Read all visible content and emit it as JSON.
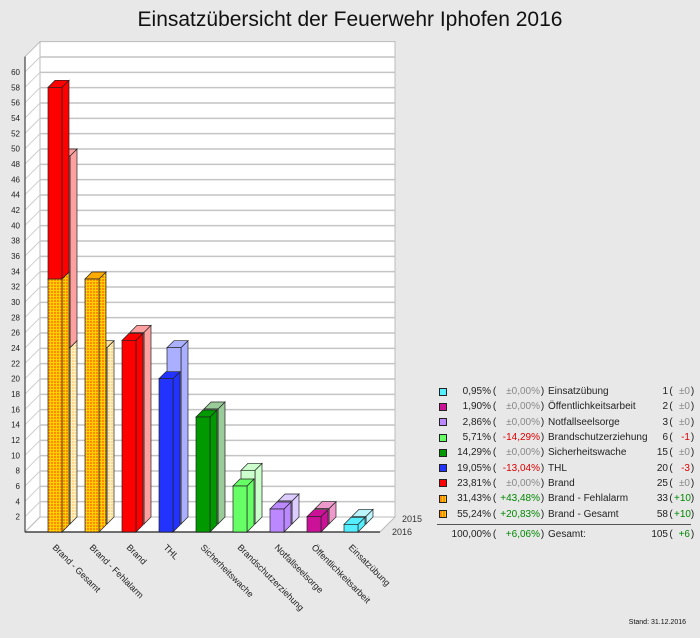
{
  "chart_data": {
    "type": "bar",
    "title": "Einsatzübersicht der Feuerwehr Iphofen 2016",
    "categories": [
      "Brand - Gesamt",
      "Brand - Fehlalarm",
      "Brand",
      "THL",
      "Sicherheitswache",
      "Brandschutzerziehung",
      "Notfallseelsorge",
      "Öffentlichkeitsarbeit",
      "Einsatzübung"
    ],
    "series": [
      {
        "name": "2016",
        "values": [
          58,
          33,
          25,
          20,
          15,
          6,
          3,
          2,
          1
        ]
      },
      {
        "name": "2015",
        "values": [
          48,
          23,
          25,
          23,
          15,
          7,
          3,
          2,
          1
        ]
      }
    ],
    "stacked_first_category": {
      "2016": {
        "Brand - Fehlalarm": 33,
        "Brand": 25
      },
      "2015": {
        "Brand - Fehlalarm": 23,
        "Brand": 25
      }
    },
    "colors": [
      "#ffaa00",
      "#ffaa00",
      "#ff0000",
      "#2233ff",
      "#009900",
      "#66ff66",
      "#bb88ff",
      "#cc1199",
      "#55eeff"
    ],
    "colors_2015": [
      "#ffe0a0",
      "#ffe0a0",
      "#ffa0a0",
      "#aab0ff",
      "#99cc99",
      "#ccffcc",
      "#ddccff",
      "#ee99cc",
      "#bbf6ff"
    ],
    "ylim": [
      0,
      60
    ],
    "yticks": [
      2,
      4,
      6,
      8,
      10,
      12,
      14,
      16,
      18,
      20,
      22,
      24,
      26,
      28,
      30,
      32,
      34,
      36,
      38,
      40,
      42,
      44,
      46,
      48,
      50,
      52,
      54,
      56,
      58,
      60
    ],
    "grid": true,
    "depth_labels": [
      "2015",
      "2016"
    ],
    "style": "3d-bar"
  },
  "legend": {
    "rows": [
      {
        "color": "#55eeff",
        "pct": "0,95%",
        "chg": "±0,00%",
        "chg_kind": "neu",
        "name": "Einsatzübung",
        "count": "1",
        "delta": "±0",
        "delta_kind": "neu"
      },
      {
        "color": "#cc1199",
        "pct": "1,90%",
        "chg": "±0,00%",
        "chg_kind": "neu",
        "name": "Öffentlichkeitsarbeit",
        "count": "2",
        "delta": "±0",
        "delta_kind": "neu"
      },
      {
        "color": "#bb88ff",
        "pct": "2,86%",
        "chg": "±0,00%",
        "chg_kind": "neu",
        "name": "Notfallseelsorge",
        "count": "3",
        "delta": "±0",
        "delta_kind": "neu"
      },
      {
        "color": "#66ff66",
        "pct": "5,71%",
        "chg": "-14,29%",
        "chg_kind": "neg",
        "name": "Brandschutzerziehung",
        "count": "6",
        "delta": "-1",
        "delta_kind": "neg"
      },
      {
        "color": "#009900",
        "pct": "14,29%",
        "chg": "±0,00%",
        "chg_kind": "neu",
        "name": "Sicherheitswache",
        "count": "15",
        "delta": "±0",
        "delta_kind": "neu"
      },
      {
        "color": "#2233ff",
        "pct": "19,05%",
        "chg": "-13,04%",
        "chg_kind": "neg",
        "name": "THL",
        "count": "20",
        "delta": "-3",
        "delta_kind": "neg"
      },
      {
        "color": "#ff0000",
        "pct": "23,81%",
        "chg": "±0,00%",
        "chg_kind": "neu",
        "name": "Brand",
        "count": "25",
        "delta": "±0",
        "delta_kind": "neu"
      },
      {
        "color": "#ffaa00",
        "pct": "31,43%",
        "chg": "+43,48%",
        "chg_kind": "pos",
        "name": "Brand - Fehlalarm",
        "count": "33",
        "delta": "+10",
        "delta_kind": "pos"
      },
      {
        "color": "#ffaa00",
        "pct": "55,24%",
        "chg": "+20,83%",
        "chg_kind": "pos",
        "name": "Brand - Gesamt",
        "count": "58",
        "delta": "+10",
        "delta_kind": "pos"
      }
    ],
    "total": {
      "pct": "100,00%",
      "chg": "+6,06%",
      "name": "Gesamt:",
      "count": "105",
      "delta": "+6"
    }
  },
  "footer": {
    "stand": "Stand: 31.12.2016"
  }
}
